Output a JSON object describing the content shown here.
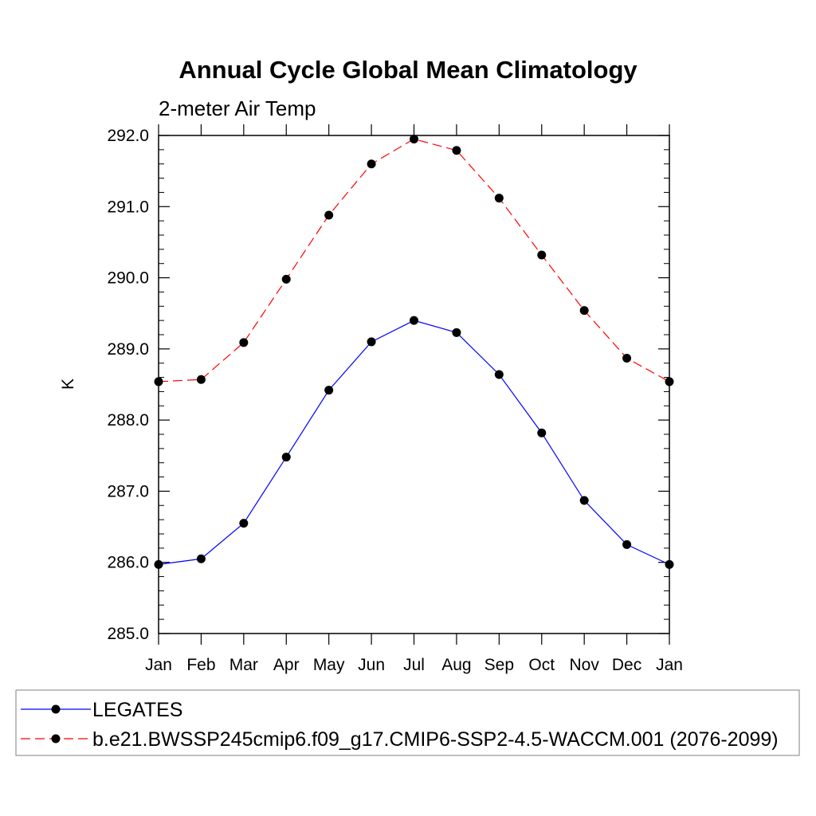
{
  "chart_data": {
    "type": "line",
    "title": "Annual Cycle Global Mean Climatology",
    "subtitle": "2-meter Air Temp",
    "xlabel": "",
    "ylabel": "K",
    "categories": [
      "Jan",
      "Feb",
      "Mar",
      "Apr",
      "May",
      "Jun",
      "Jul",
      "Aug",
      "Sep",
      "Oct",
      "Nov",
      "Dec",
      "Jan"
    ],
    "ylim": [
      285.0,
      292.0
    ],
    "yticks": [
      "285.0",
      "286.0",
      "287.0",
      "288.0",
      "289.0",
      "290.0",
      "291.0",
      "292.0"
    ],
    "grid": false,
    "legend_position": "bottom",
    "series": [
      {
        "name": "LEGATES",
        "color": "#0000ff",
        "line_style": "solid",
        "marker": "filled-circle",
        "values": [
          285.97,
          286.05,
          286.55,
          287.48,
          288.42,
          289.1,
          289.4,
          289.23,
          288.64,
          287.82,
          286.87,
          286.25,
          285.97
        ]
      },
      {
        "name": "b.e21.BWSSP245cmip6.f09_g17.CMIP6-SSP2-4.5-WACCM.001 (2076-2099)",
        "color": "#ff0000",
        "line_style": "dashed",
        "marker": "filled-circle",
        "values": [
          288.54,
          288.57,
          289.09,
          289.98,
          290.88,
          291.6,
          291.95,
          291.79,
          291.12,
          290.32,
          289.54,
          288.87,
          288.54
        ]
      }
    ]
  }
}
